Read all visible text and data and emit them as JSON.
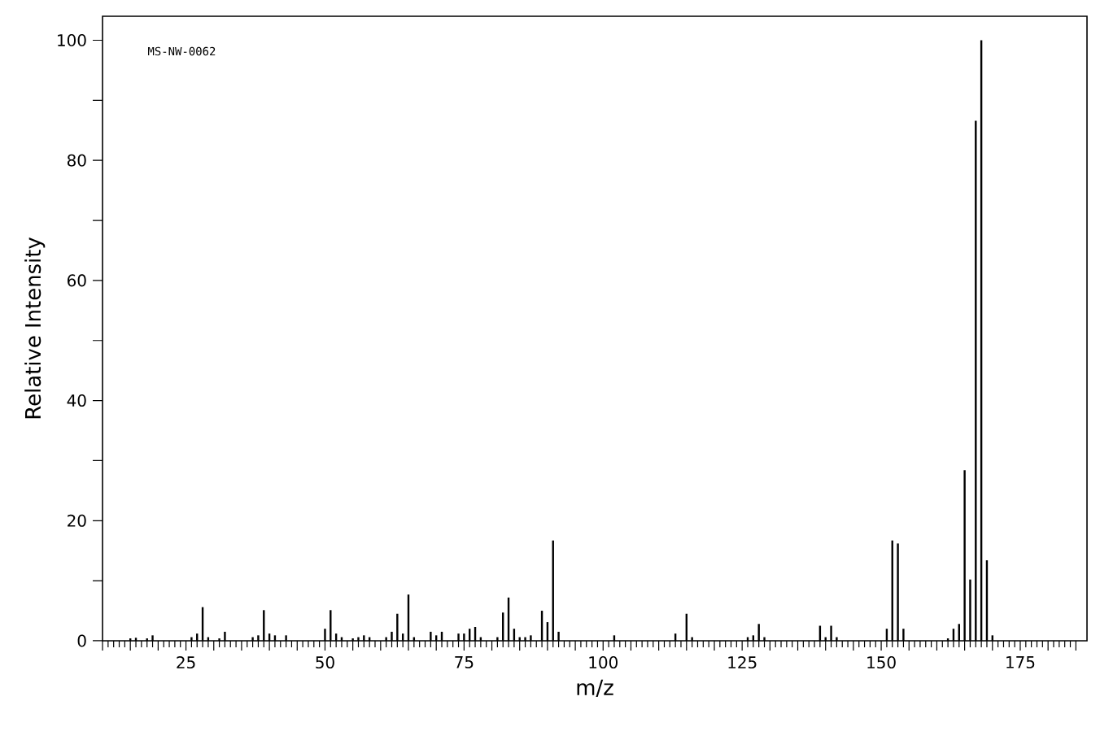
{
  "chart_data": {
    "type": "bar",
    "xlabel": "m/z",
    "ylabel": "Relative Intensity",
    "annotations": [
      "MS-NW-0062"
    ],
    "x": [
      15,
      16,
      18,
      19,
      26,
      27,
      28,
      29,
      31,
      32,
      37,
      38,
      39,
      40,
      41,
      43,
      50,
      51,
      52,
      53,
      55,
      56,
      57,
      58,
      61,
      62,
      63,
      64,
      65,
      66,
      69,
      70,
      71,
      74,
      75,
      76,
      77,
      78,
      81,
      82,
      83,
      84,
      85,
      86,
      87,
      89,
      90,
      91,
      92,
      102,
      113,
      115,
      116,
      126,
      127,
      128,
      129,
      139,
      140,
      141,
      142,
      151,
      152,
      153,
      154,
      162,
      163,
      164,
      165,
      166,
      167,
      168,
      169,
      170
    ],
    "values": [
      0.4,
      0.5,
      0.4,
      0.9,
      0.6,
      1.2,
      5.6,
      0.6,
      0.4,
      1.5,
      0.6,
      0.9,
      5.1,
      1.2,
      0.9,
      0.9,
      2.0,
      5.1,
      1.2,
      0.6,
      0.4,
      0.6,
      0.9,
      0.6,
      0.6,
      1.5,
      4.5,
      1.2,
      7.7,
      0.6,
      1.5,
      0.9,
      1.5,
      1.2,
      1.2,
      2.0,
      2.3,
      0.6,
      0.6,
      4.7,
      7.2,
      2.0,
      0.6,
      0.6,
      0.9,
      5.0,
      3.1,
      16.7,
      1.5,
      0.9,
      1.2,
      4.5,
      0.6,
      0.6,
      0.9,
      2.8,
      0.6,
      2.5,
      0.6,
      2.5,
      0.6,
      2.0,
      16.7,
      16.2,
      2.0,
      0.4,
      2.0,
      2.8,
      28.4,
      10.2,
      86.6,
      100,
      13.4,
      0.9
    ],
    "color": "#000000",
    "xlim": [
      10,
      187
    ],
    "ylim": [
      0,
      104
    ],
    "xticks": [
      {
        "value": 10,
        "label": null
      },
      {
        "value": 15,
        "label": null
      },
      {
        "value": 20,
        "label": null
      },
      25,
      {
        "value": 30,
        "label": null
      },
      {
        "value": 35,
        "label": null
      },
      {
        "value": 40,
        "label": null
      },
      {
        "value": 45,
        "label": null
      },
      50,
      {
        "value": 55,
        "label": null
      },
      {
        "value": 60,
        "label": null
      },
      {
        "value": 65,
        "label": null
      },
      {
        "value": 70,
        "label": null
      },
      75,
      {
        "value": 80,
        "label": null
      },
      {
        "value": 85,
        "label": null
      },
      {
        "value": 90,
        "label": null
      },
      {
        "value": 95,
        "label": null
      },
      100,
      {
        "value": 105,
        "label": null
      },
      {
        "value": 110,
        "label": null
      },
      {
        "value": 115,
        "label": null
      },
      {
        "value": 120,
        "label": null
      },
      125,
      {
        "value": 130,
        "label": null
      },
      {
        "value": 135,
        "label": null
      },
      {
        "value": 140,
        "label": null
      },
      {
        "value": 145,
        "label": null
      },
      150,
      {
        "value": 155,
        "label": null
      },
      {
        "value": 160,
        "label": null
      },
      {
        "value": 165,
        "label": null
      },
      {
        "value": 170,
        "label": null
      },
      175,
      {
        "value": 180,
        "label": null
      },
      {
        "value": 185,
        "label": null
      }
    ],
    "yticks": [
      0,
      {
        "value": 10,
        "label": null
      },
      20,
      {
        "value": 30,
        "label": null
      },
      40,
      {
        "value": 50,
        "label": null
      },
      60,
      {
        "value": 70,
        "label": null
      },
      80,
      {
        "value": 90,
        "label": null
      },
      100
    ],
    "grid": false
  }
}
